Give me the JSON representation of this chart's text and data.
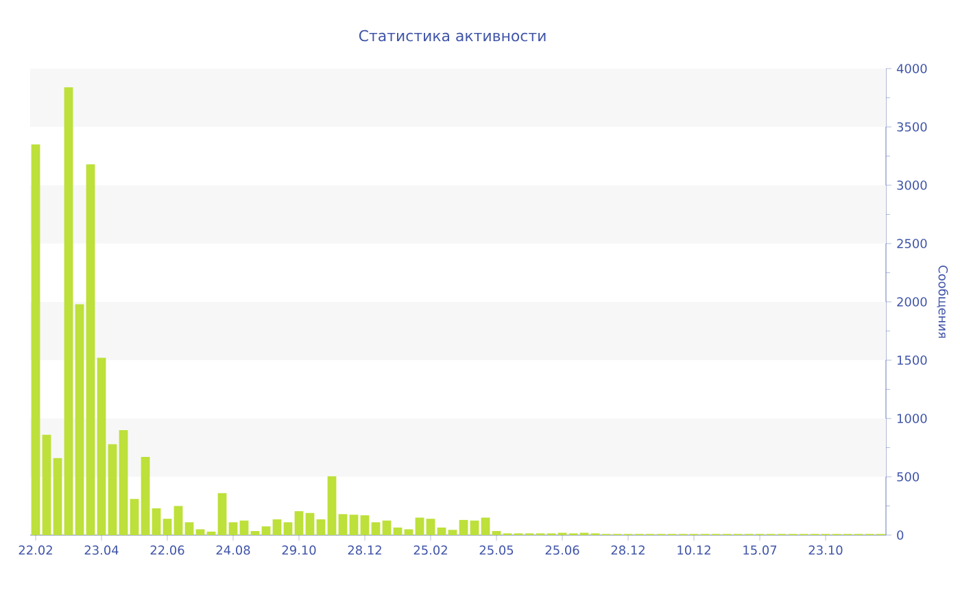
{
  "chart_data": {
    "type": "bar",
    "title": "Статистика активности",
    "ylabel": "Сообщения",
    "categories": [
      "22.02",
      null,
      null,
      null,
      null,
      null,
      "23.04",
      null,
      null,
      null,
      null,
      null,
      "22.06",
      null,
      null,
      null,
      null,
      null,
      "24.08",
      null,
      null,
      null,
      null,
      null,
      "29.10",
      null,
      null,
      null,
      null,
      null,
      "28.12",
      null,
      null,
      null,
      null,
      null,
      "25.02",
      null,
      null,
      null,
      null,
      null,
      "25.05",
      null,
      null,
      null,
      null,
      null,
      "25.06",
      null,
      null,
      null,
      null,
      null,
      "28.12",
      null,
      null,
      null,
      null,
      null,
      "10.12",
      null,
      null,
      null,
      null,
      null,
      "15.07",
      null,
      null,
      null,
      null,
      null,
      "23.10",
      null,
      null,
      null,
      null,
      null
    ],
    "values": [
      3350,
      860,
      660,
      3840,
      1980,
      3180,
      1520,
      780,
      900,
      310,
      670,
      230,
      140,
      250,
      110,
      50,
      30,
      360,
      110,
      125,
      35,
      75,
      135,
      110,
      205,
      190,
      135,
      505,
      180,
      175,
      170,
      110,
      125,
      65,
      50,
      150,
      140,
      65,
      45,
      130,
      125,
      150,
      35,
      15,
      15,
      15,
      15,
      15,
      20,
      15,
      20,
      15,
      10,
      10,
      10,
      10,
      10,
      10,
      10,
      10,
      10,
      10,
      10,
      10,
      10,
      10,
      10,
      10,
      10,
      10,
      10,
      10,
      10,
      10,
      10,
      10,
      10,
      10
    ],
    "color": "#bde03a",
    "ylim": [
      0,
      4000
    ],
    "yticks": [
      0,
      500,
      1000,
      1500,
      2000,
      2500,
      3000,
      3500,
      4000
    ],
    "bands": [
      {
        "axis": "y",
        "from": 500,
        "to": 1000,
        "color": "#f7f7f7"
      },
      {
        "axis": "y",
        "from": 1500,
        "to": 2000,
        "color": "#f7f7f7"
      },
      {
        "axis": "y",
        "from": 2500,
        "to": 3000,
        "color": "#f7f7f7"
      },
      {
        "axis": "y",
        "from": 3500,
        "to": 4000,
        "color": "#f7f7f7"
      }
    ]
  }
}
